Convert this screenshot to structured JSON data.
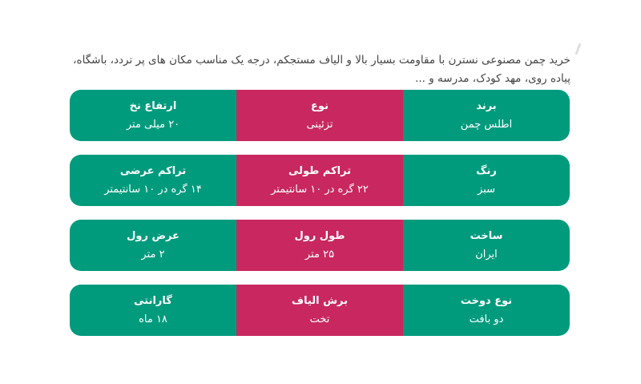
{
  "intro": "خرید چمن مصنوعی نسترن با مقاومت بسیار بالا و الیاف مستجکم، درجه یک مناسب مکان های پر تردد، باشگاه، پیاده روی، مهد کودک، مدرسه و ...",
  "colors": {
    "green": "#009B7D",
    "pink": "#C8285F"
  },
  "specs": [
    [
      {
        "label": "برند",
        "value": "اطلس چمن"
      },
      {
        "label": "نوع",
        "value": "تزئینی"
      },
      {
        "label": "ارتفاع نخ",
        "value": "۲۰ میلی متر"
      }
    ],
    [
      {
        "label": "رنگ",
        "value": "سبز"
      },
      {
        "label": "تراکم طولی",
        "value": "۲۲ گره در ۱۰ سانتیمتر"
      },
      {
        "label": "تراکم عرضی",
        "value": "۱۴ گره در ۱۰ سانتیمتر"
      }
    ],
    [
      {
        "label": "ساخت",
        "value": "ایران"
      },
      {
        "label": "طول رول",
        "value": "۲۵ متر"
      },
      {
        "label": "عرض رول",
        "value": "۲ متر"
      }
    ],
    [
      {
        "label": "نوع دوخت",
        "value": "دو بافت"
      },
      {
        "label": "برش الیاف",
        "value": "تخت"
      },
      {
        "label": "گارانتی",
        "value": "۱۸ ماه"
      }
    ]
  ]
}
